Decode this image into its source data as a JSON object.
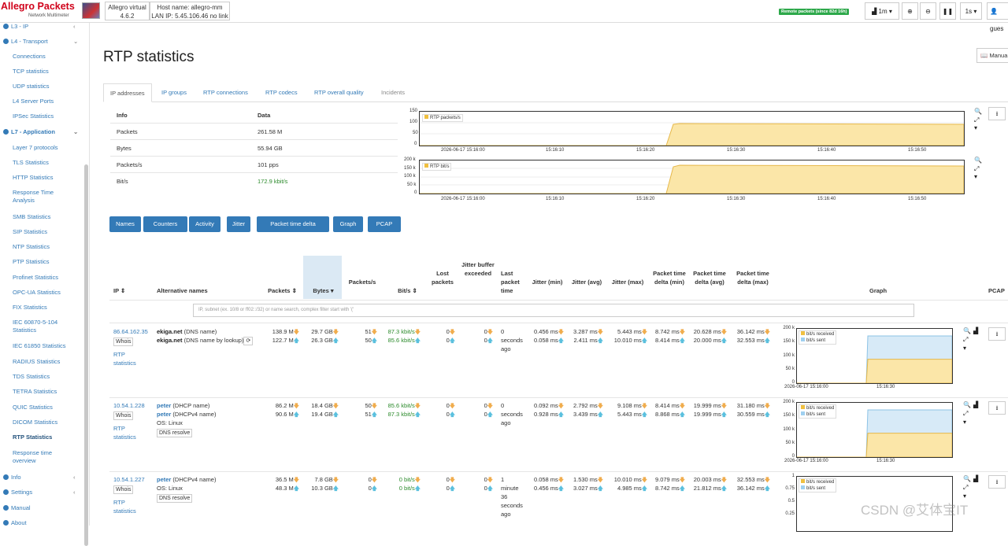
{
  "header": {
    "brand": "Allegro Packets",
    "subtitle": "Network Multimeter",
    "device": "Allegro virtual",
    "version": "4.6.2",
    "hostname": "Host name: allegro-mm",
    "lan_ip": "LAN IP: 5.45.106.46 no link",
    "remote_badge": "Remote packets (since 82d 16h)",
    "range": "1m",
    "interval": "1s",
    "user": "gues"
  },
  "sidebar": {
    "l3": "L3 - IP",
    "l4": "L4 - Transport",
    "l4_items": [
      "Connections",
      "TCP statistics",
      "UDP statistics",
      "L4 Server Ports",
      "IPSec Statistics"
    ],
    "l7": "L7 - Application",
    "l7_items": [
      "Layer 7 protocols",
      "TLS Statistics",
      "HTTP Statistics",
      "Response Time",
      "Analysis",
      "SMB Statistics",
      "SIP Statistics",
      "NTP Statistics",
      "PTP Statistics",
      "Profinet Statistics",
      "OPC-UA Statistics",
      "FIX Statistics",
      "IEC 60870-5-104",
      "Statistics",
      "IEC 61850 Statistics",
      "RADIUS Statistics",
      "TDS Statistics",
      "TETRA Statistics",
      "QUIC Statistics",
      "DICOM Statistics",
      "RTP Statistics",
      "Response time",
      "overview"
    ],
    "info": "Info",
    "settings": "Settings",
    "manual": "Manual",
    "about": "About"
  },
  "page": {
    "title": "RTP statistics",
    "manual_btn": "Manua"
  },
  "tabs": [
    "IP addresses",
    "IP groups",
    "RTP connections",
    "RTP codecs",
    "RTP overall quality",
    "Incidents"
  ],
  "info": {
    "h_info": "Info",
    "h_data": "Data",
    "rows": [
      [
        "Packets",
        "261.58 M"
      ],
      [
        "Bytes",
        "55.94 GB"
      ],
      [
        "Packets/s",
        "101 pps"
      ],
      [
        "Bit/s",
        "172.9 kbit/s"
      ]
    ]
  },
  "chart_packets": {
    "legend": "RTP packets/s",
    "y_ticks": [
      "150",
      "100",
      "50",
      "0"
    ],
    "x_ticks": [
      "2026-06-17 15:16:00",
      "15:16:10",
      "15:16:20",
      "15:16:30",
      "15:16:40",
      "15:16:50"
    ]
  },
  "chart_bits": {
    "legend": "RTP bit/s",
    "y_ticks": [
      "200 k",
      "150 k",
      "100 k",
      "50 k",
      "0"
    ],
    "x_ticks": [
      "2026-06-17 15:16:00",
      "15:16:10",
      "15:16:20",
      "15:16:30",
      "15:16:40",
      "15:16:50"
    ]
  },
  "buttons": [
    "Names",
    "Counters",
    "Activity",
    "Jitter",
    "Packet time delta",
    "Graph",
    "PCAP"
  ],
  "columns": {
    "ip": "IP",
    "alt": "Alternative names",
    "packets": "Packets",
    "bytes": "Bytes",
    "pps": "Packets/s",
    "bits": "Bit/s",
    "lost": "Lost packets",
    "jbuf": "Jitter buffer exceeded",
    "last": "Last packet time",
    "jmin": "Jitter (min)",
    "javg": "Jitter (avg)",
    "jmax": "Jitter (max)",
    "ptd": "Packet time delta (min)",
    "ptda": "Packet time delta (avg)",
    "ptdm": "Packet time delta (max)",
    "graph": "Graph",
    "pcap": "PCAP"
  },
  "filter_placeholder": "IP, subnet (ex. 10/8 or ff02::/32) or name search, complex filter start with '('",
  "common": {
    "whois": "Whois",
    "rtp_stats_1": "RTP",
    "rtp_stats_2": "statistics",
    "dns_resolve": "DNS resolve",
    "os_linux": "OS: Linux"
  },
  "rows": [
    {
      "ip": "86.64.162.35",
      "n1": "ekiga.net",
      "n1s": " (DNS name)",
      "n2": "ekiga.net",
      "n2s": " (DNS name by lookup)",
      "pk": [
        "138.9 M",
        "122.7 M"
      ],
      "by": [
        "29.7 GB",
        "26.3 GB"
      ],
      "pps": [
        "51",
        "50"
      ],
      "bits": [
        "87.3 kbit/s",
        "85.6 kbit/s"
      ],
      "lost": [
        "0",
        "0"
      ],
      "jb": [
        "0",
        "0"
      ],
      "last": [
        "0",
        "seconds",
        "ago"
      ],
      "jmin": [
        "0.456 ms",
        "0.058 ms"
      ],
      "javg": [
        "3.287 ms",
        "2.411 ms"
      ],
      "jmax": [
        "5.443 ms",
        "10.010 ms"
      ],
      "ptd": [
        "8.742 ms",
        "8.414 ms"
      ],
      "ptda": [
        "20.628 ms",
        "20.000 ms"
      ],
      "ptdm": [
        "36.142 ms",
        "32.553 ms"
      ],
      "graph": {
        "y": [
          "200 k",
          "150 k",
          "100 k",
          "50 k",
          "0"
        ],
        "x": [
          "2026-06-17 15:16:00",
          "15:16:30"
        ],
        "legend": [
          "bit/s received",
          "bit/s sent"
        ]
      }
    },
    {
      "ip": "10.54.1.228",
      "n1": "peter",
      "n1s": " (DHCP name)",
      "n2": "peter",
      "n2s": " (DHCPv4 name)",
      "pk": [
        "86.2 M",
        "90.6 M"
      ],
      "by": [
        "18.4 GB",
        "19.4 GB"
      ],
      "pps": [
        "50",
        "51"
      ],
      "bits": [
        "85.6 kbit/s",
        "87.3 kbit/s"
      ],
      "lost": [
        "0",
        "0"
      ],
      "jb": [
        "0",
        "0"
      ],
      "last": [
        "0",
        "seconds",
        "ago"
      ],
      "jmin": [
        "0.092 ms",
        "0.928 ms"
      ],
      "javg": [
        "2.792 ms",
        "3.439 ms"
      ],
      "jmax": [
        "9.108 ms",
        "5.443 ms"
      ],
      "ptd": [
        "8.414 ms",
        "8.868 ms"
      ],
      "ptda": [
        "19.999 ms",
        "19.999 ms"
      ],
      "ptdm": [
        "31.180 ms",
        "30.559 ms"
      ],
      "graph": {
        "y": [
          "200 k",
          "150 k",
          "100 k",
          "50 k",
          "0"
        ],
        "x": [
          "2026-06-17 15:16:00",
          "15:16:30"
        ],
        "legend": [
          "bit/s received",
          "bit/s sent"
        ]
      }
    },
    {
      "ip": "10.54.1.227",
      "n1": "peter",
      "n1s": " (DHCPv4 name)",
      "pk": [
        "36.5 M",
        "48.3 M"
      ],
      "by": [
        "7.8 GB",
        "10.3 GB"
      ],
      "pps": [
        "0",
        "0"
      ],
      "bits": [
        "0 bit/s",
        "0 bit/s"
      ],
      "lost": [
        "0",
        "0"
      ],
      "jb": [
        "0",
        "0"
      ],
      "last": [
        "1",
        "minute",
        "36",
        "seconds",
        "ago"
      ],
      "jmin": [
        "0.058 ms",
        "0.456 ms"
      ],
      "javg": [
        "1.530 ms",
        "3.027 ms"
      ],
      "jmax": [
        "10.010 ms",
        "4.985 ms"
      ],
      "ptd": [
        "9.079 ms",
        "8.742 ms"
      ],
      "ptda": [
        "20.003 ms",
        "21.812 ms"
      ],
      "ptdm": [
        "32.553 ms",
        "36.142 ms"
      ],
      "graph": {
        "y": [
          "1",
          "0.75",
          "0.5",
          "0.25"
        ],
        "legend": [
          "bit/s received",
          "bit/s sent"
        ]
      }
    }
  ],
  "watermark": "CSDN @艾体宝IT"
}
